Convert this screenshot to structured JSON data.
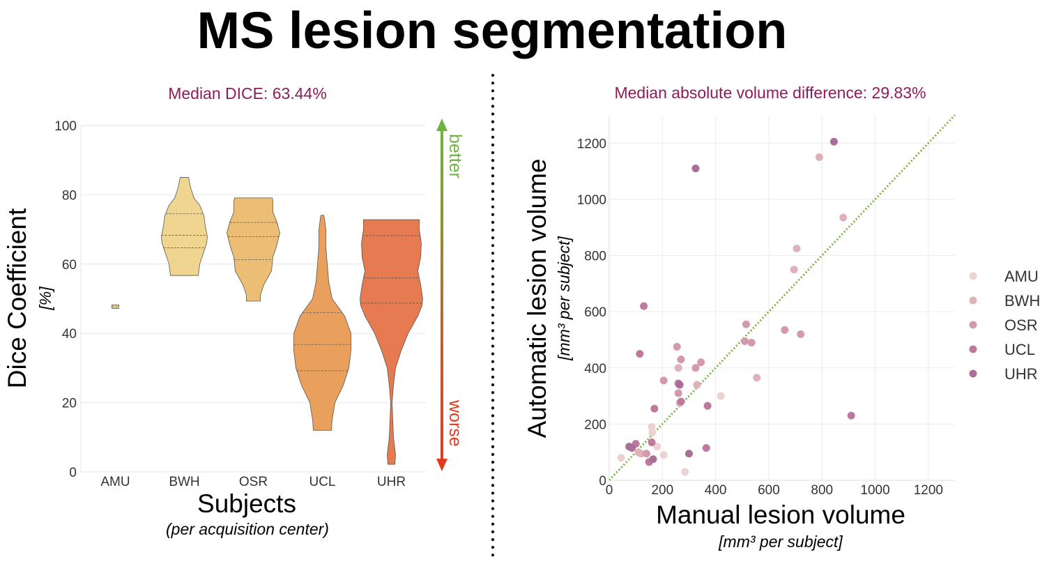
{
  "title": "MS lesion segmentation",
  "chart_data": [
    {
      "type": "violin",
      "subtitle": "Median DICE: 63.44%",
      "ylabel": "Dice Coefficient",
      "ylabel_unit": "[%]",
      "xlabel": "Subjects",
      "xlabel_sub": "(per acquisition center)",
      "ylim": [
        0,
        100
      ],
      "yticks": [
        0,
        20,
        40,
        60,
        80,
        100
      ],
      "categories": [
        "AMU",
        "BWH",
        "OSR",
        "UCL",
        "UHR"
      ],
      "colors": [
        "#f1dc95",
        "#efd58f",
        "#ecbe75",
        "#e8a05c",
        "#e67a50"
      ],
      "violins": [
        {
          "name": "AMU",
          "profile": [
            [
              47.2,
              5
            ],
            [
              47.8,
              5
            ],
            [
              48.2,
              5
            ]
          ],
          "quartiles": [
            47.7
          ]
        },
        {
          "name": "BWH",
          "profile": [
            [
              56.7,
              20
            ],
            [
              60,
              22
            ],
            [
              63,
              27
            ],
            [
              66,
              32
            ],
            [
              68,
              33
            ],
            [
              71,
              30
            ],
            [
              74,
              28
            ],
            [
              77,
              22
            ],
            [
              79,
              14
            ],
            [
              82,
              9
            ],
            [
              85,
              6
            ]
          ],
          "quartiles": [
            64.7,
            68.3,
            74.5
          ]
        },
        {
          "name": "OSR",
          "profile": [
            [
              49.3,
              10
            ],
            [
              51,
              10
            ],
            [
              54,
              15
            ],
            [
              58,
              26
            ],
            [
              62,
              28
            ],
            [
              65,
              33
            ],
            [
              69,
              38
            ],
            [
              72,
              34
            ],
            [
              75,
              28
            ],
            [
              78,
              28
            ],
            [
              79.1,
              27
            ]
          ],
          "quartiles": [
            61.3,
            67.9,
            72
          ]
        },
        {
          "name": "UCL",
          "profile": [
            [
              12,
              13
            ],
            [
              15,
              14
            ],
            [
              20,
              18
            ],
            [
              25,
              30
            ],
            [
              30,
              38
            ],
            [
              35,
              41
            ],
            [
              40,
              41
            ],
            [
              45,
              32
            ],
            [
              50,
              14
            ],
            [
              55,
              9
            ],
            [
              60,
              7
            ],
            [
              65,
              5
            ],
            [
              70,
              5
            ],
            [
              73,
              3
            ],
            [
              74.1,
              2
            ]
          ],
          "quartiles": [
            29.2,
            36.8,
            46
          ]
        },
        {
          "name": "UHR",
          "profile": [
            [
              2.2,
              5
            ],
            [
              5,
              6
            ],
            [
              10,
              3
            ],
            [
              20,
              1
            ],
            [
              25,
              3
            ],
            [
              30,
              6
            ],
            [
              35,
              14
            ],
            [
              40,
              24
            ],
            [
              45,
              38
            ],
            [
              48,
              44
            ],
            [
              50,
              45
            ],
            [
              54,
              42
            ],
            [
              58,
              38
            ],
            [
              62,
              42
            ],
            [
              66,
              43
            ],
            [
              70,
              40
            ],
            [
              72.8,
              40
            ]
          ],
          "quartiles": [
            48.7,
            56,
            68.2
          ]
        }
      ],
      "indicator": {
        "top_label": "better",
        "bottom_label": "worse",
        "top_color": "#6db33f",
        "bottom_color": "#e5391f"
      }
    },
    {
      "type": "scatter",
      "subtitle": "Median absolute volume difference: 29.83%",
      "xlabel": "Manual lesion volume",
      "xlabel_unit": "[mm³ per subject]",
      "ylabel": "Automatic lesion volume",
      "ylabel_unit": "[mm³ per subject]",
      "xlim": [
        0,
        1300
      ],
      "ylim": [
        0,
        1300
      ],
      "xticks": [
        0,
        200,
        400,
        600,
        800,
        1000,
        1200
      ],
      "yticks": [
        0,
        200,
        400,
        600,
        800,
        1000,
        1200
      ],
      "identity_line": true,
      "identity_color": "#7cb342",
      "series": [
        {
          "name": "AMU",
          "color": "#ecd3d1",
          "points": [
            [
              45,
              80
            ],
            [
              160,
              190
            ],
            [
              180,
              120
            ],
            [
              205,
              90
            ],
            [
              285,
              30
            ],
            [
              420,
              300
            ],
            [
              162,
              170
            ]
          ]
        },
        {
          "name": "BWH",
          "color": "#dfb2ba",
          "points": [
            [
              260,
              400
            ],
            [
              265,
              275
            ],
            [
              330,
              340
            ],
            [
              555,
              365
            ],
            [
              790,
              1150
            ],
            [
              880,
              935
            ],
            [
              705,
              825
            ],
            [
              695,
              750
            ],
            [
              110,
              100
            ],
            [
              120,
              95
            ]
          ]
        },
        {
          "name": "OSR",
          "color": "#d29aad",
          "points": [
            [
              260,
              310
            ],
            [
              255,
              475
            ],
            [
              270,
              430
            ],
            [
              345,
              420
            ],
            [
              515,
              555
            ],
            [
              510,
              495
            ],
            [
              535,
              490
            ],
            [
              720,
              520
            ],
            [
              660,
              535
            ],
            [
              205,
              355
            ],
            [
              325,
              400
            ],
            [
              140,
              95
            ]
          ]
        },
        {
          "name": "UCL",
          "color": "#be7a9c",
          "points": [
            [
              130,
              620
            ],
            [
              115,
              450
            ],
            [
              260,
              345
            ],
            [
              270,
              280
            ],
            [
              370,
              265
            ],
            [
              365,
              115
            ],
            [
              160,
              135
            ],
            [
              170,
              255
            ],
            [
              100,
              130
            ],
            [
              910,
              230
            ],
            [
              150,
              65
            ]
          ]
        },
        {
          "name": "UHR",
          "color": "#a96f97",
          "points": [
            [
              325,
              1110
            ],
            [
              845,
              1205
            ],
            [
              300,
              95
            ],
            [
              75,
              120
            ],
            [
              85,
              115
            ],
            [
              165,
              75
            ],
            [
              265,
              340
            ]
          ]
        }
      ]
    }
  ]
}
